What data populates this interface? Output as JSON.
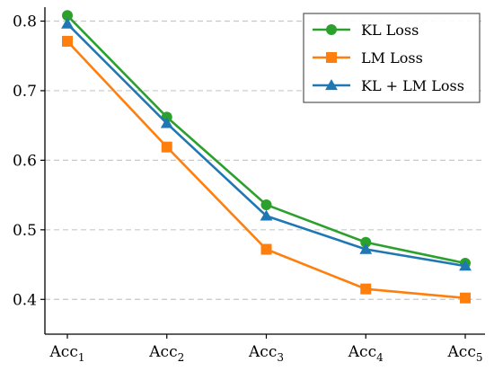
{
  "chart_data": {
    "type": "line",
    "title": "",
    "xlabel": "",
    "ylabel": "",
    "categories": [
      {
        "base": "Acc",
        "sub": "1"
      },
      {
        "base": "Acc",
        "sub": "2"
      },
      {
        "base": "Acc",
        "sub": "3"
      },
      {
        "base": "Acc",
        "sub": "4"
      },
      {
        "base": "Acc",
        "sub": "5"
      }
    ],
    "ylim": [
      0.35,
      0.82
    ],
    "yticks": [
      "0.4",
      "0.5",
      "0.6",
      "0.7",
      "0.8"
    ],
    "grid": "horizontal-dashed",
    "legend_position": "top-right",
    "series": [
      {
        "name": "KL Loss",
        "color": "#2ca02c",
        "marker": "circle",
        "values": [
          0.808,
          0.662,
          0.536,
          0.482,
          0.452
        ]
      },
      {
        "name": "LM Loss",
        "color": "#ff7f0e",
        "marker": "square",
        "values": [
          0.771,
          0.619,
          0.472,
          0.415,
          0.402
        ]
      },
      {
        "name": "KL + LM Loss",
        "color": "#1f77b4",
        "marker": "triangle",
        "values": [
          0.796,
          0.653,
          0.52,
          0.472,
          0.448
        ]
      }
    ]
  }
}
